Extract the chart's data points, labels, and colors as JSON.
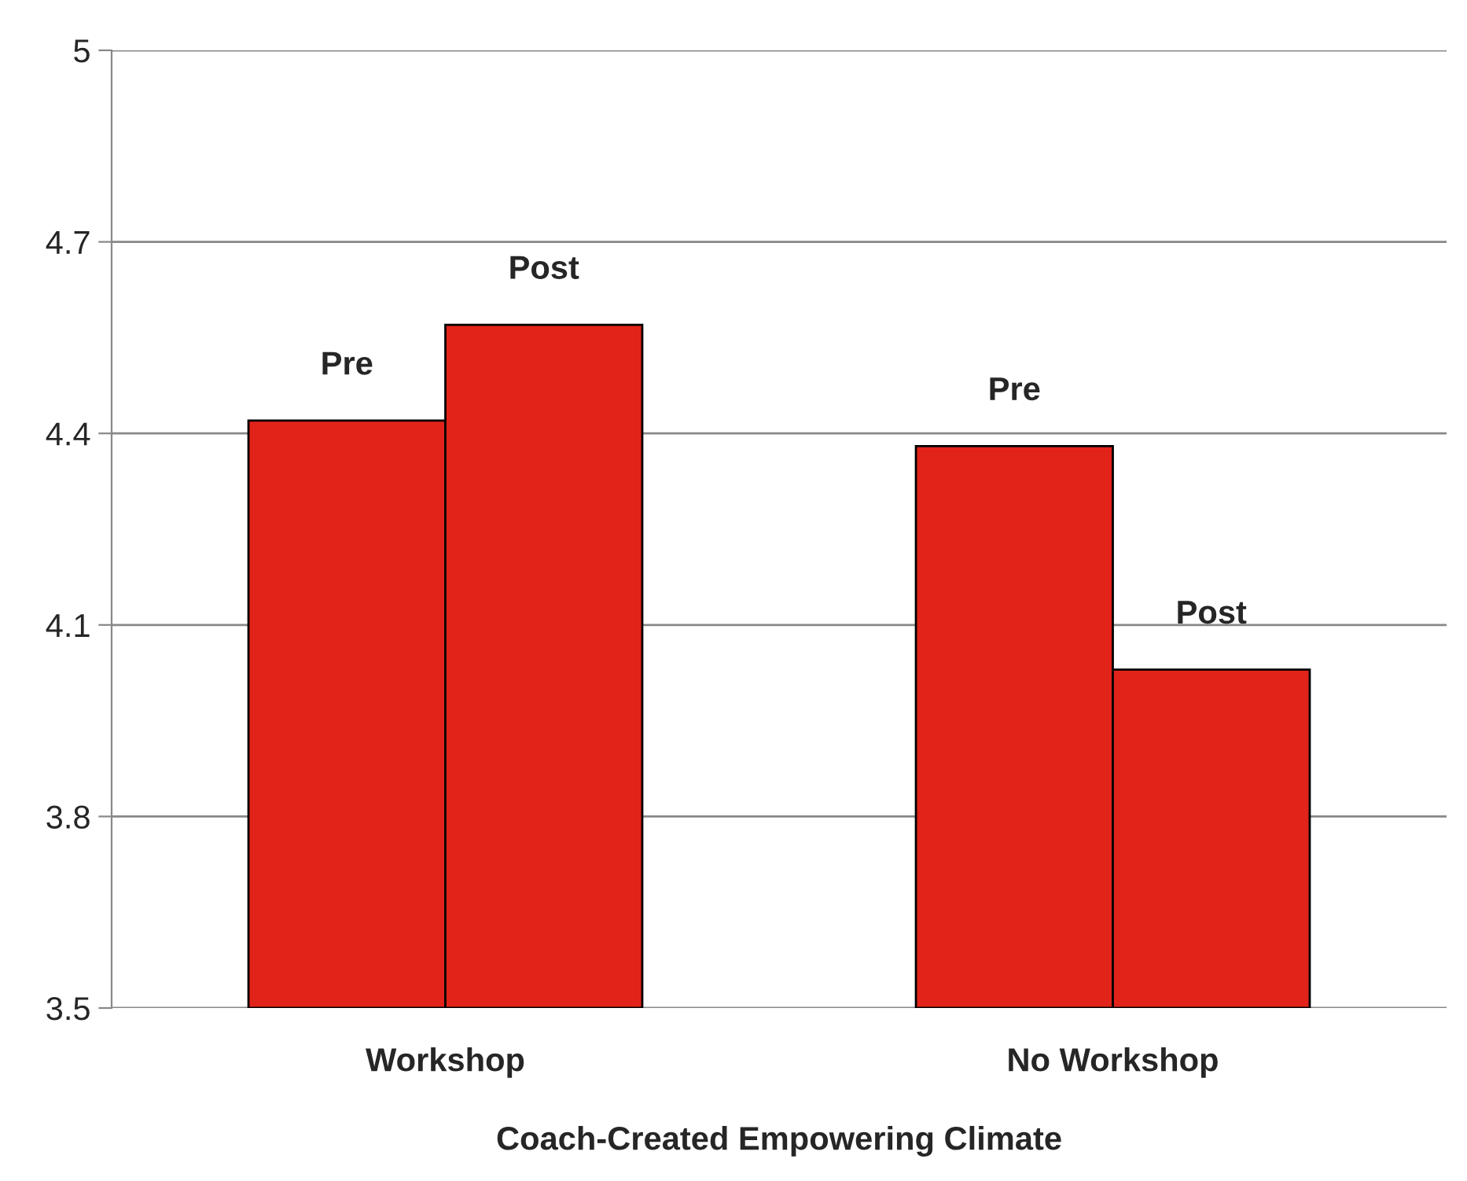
{
  "chart_data": {
    "type": "bar",
    "xlabel": "Coach-Created Empowering Climate",
    "categories": [
      "Workshop",
      "No Workshop"
    ],
    "series": [
      {
        "name": "Pre",
        "color": "#e2231a",
        "values": [
          4.42,
          4.38
        ]
      },
      {
        "name": "Post",
        "color": "#e2231a",
        "values": [
          4.57,
          4.03
        ]
      }
    ],
    "ylim": [
      3.5,
      5
    ],
    "yticks": [
      3.5,
      3.8,
      4.1,
      4.4,
      4.7,
      5
    ],
    "grid": "y",
    "legend": false
  }
}
